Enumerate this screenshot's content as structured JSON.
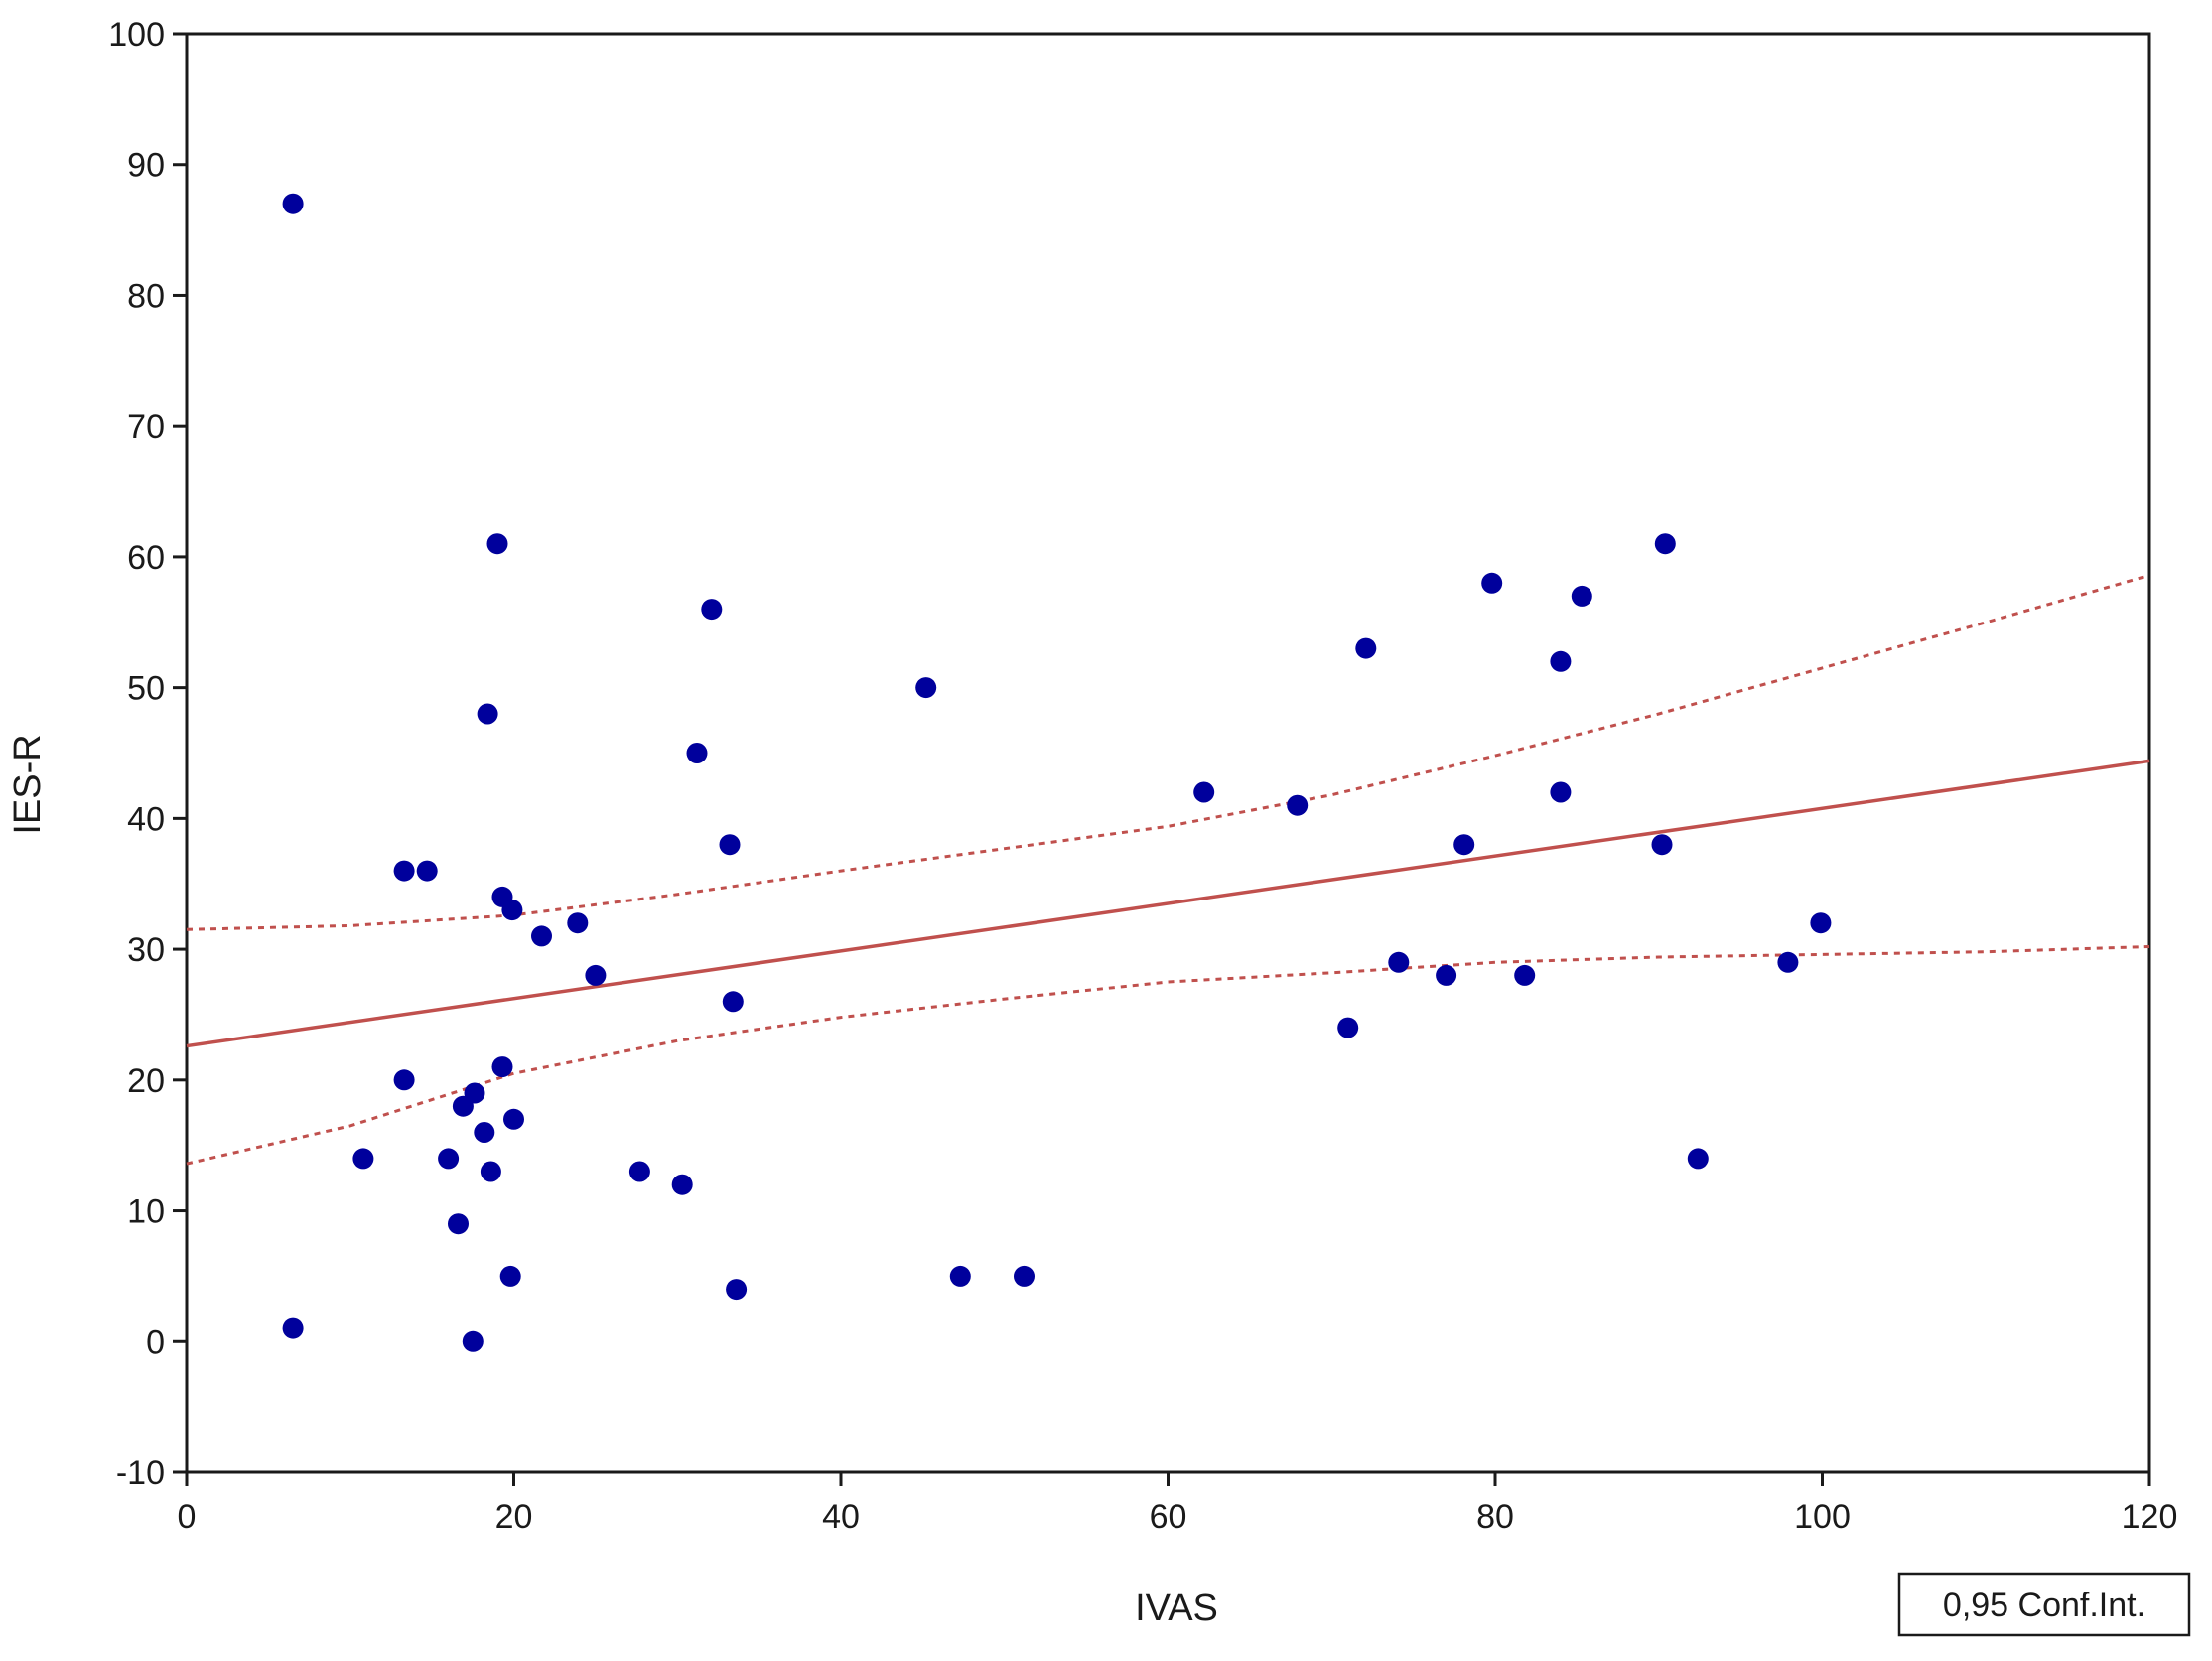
{
  "chart_data": {
    "type": "scatter",
    "xlabel": "IVAS",
    "ylabel": "IES-R",
    "xlim": [
      0,
      120
    ],
    "ylim": [
      -10,
      100
    ],
    "xticks": [
      "0",
      "20",
      "40",
      "60",
      "80",
      "100",
      "120"
    ],
    "yticks": [
      "-10",
      "0",
      "10",
      "20",
      "30",
      "40",
      "50",
      "60",
      "70",
      "80",
      "90",
      "100"
    ],
    "grid": false,
    "legend": {
      "label": "0,95 Conf.Int.",
      "position": "bottom-right"
    },
    "colors": {
      "points": "#00009c",
      "fit": "#c0504d",
      "ci": "#c0504d"
    },
    "points": [
      {
        "x": 6.5,
        "y": 87
      },
      {
        "x": 6.5,
        "y": 1
      },
      {
        "x": 10.8,
        "y": 14
      },
      {
        "x": 13.3,
        "y": 36
      },
      {
        "x": 14.7,
        "y": 36
      },
      {
        "x": 13.3,
        "y": 20
      },
      {
        "x": 16.0,
        "y": 14
      },
      {
        "x": 16.6,
        "y": 9
      },
      {
        "x": 16.9,
        "y": 18
      },
      {
        "x": 17.6,
        "y": 19
      },
      {
        "x": 17.5,
        "y": 0
      },
      {
        "x": 18.2,
        "y": 16
      },
      {
        "x": 18.4,
        "y": 48
      },
      {
        "x": 18.6,
        "y": 13
      },
      {
        "x": 19.0,
        "y": 61
      },
      {
        "x": 19.3,
        "y": 34
      },
      {
        "x": 19.3,
        "y": 21
      },
      {
        "x": 19.8,
        "y": 5
      },
      {
        "x": 19.9,
        "y": 33
      },
      {
        "x": 20.0,
        "y": 17
      },
      {
        "x": 21.7,
        "y": 31
      },
      {
        "x": 23.9,
        "y": 32
      },
      {
        "x": 25.0,
        "y": 28
      },
      {
        "x": 27.7,
        "y": 13
      },
      {
        "x": 30.3,
        "y": 12
      },
      {
        "x": 31.2,
        "y": 45
      },
      {
        "x": 32.1,
        "y": 56
      },
      {
        "x": 33.2,
        "y": 38
      },
      {
        "x": 33.4,
        "y": 26
      },
      {
        "x": 33.6,
        "y": 4
      },
      {
        "x": 45.2,
        "y": 50
      },
      {
        "x": 47.3,
        "y": 5
      },
      {
        "x": 51.2,
        "y": 5
      },
      {
        "x": 62.2,
        "y": 42
      },
      {
        "x": 67.9,
        "y": 41
      },
      {
        "x": 71.0,
        "y": 24
      },
      {
        "x": 72.1,
        "y": 53
      },
      {
        "x": 74.1,
        "y": 29
      },
      {
        "x": 77.0,
        "y": 28
      },
      {
        "x": 78.1,
        "y": 38
      },
      {
        "x": 79.8,
        "y": 58
      },
      {
        "x": 81.8,
        "y": 28
      },
      {
        "x": 84.0,
        "y": 52
      },
      {
        "x": 84.0,
        "y": 42
      },
      {
        "x": 85.3,
        "y": 57
      },
      {
        "x": 90.2,
        "y": 38
      },
      {
        "x": 90.4,
        "y": 61
      },
      {
        "x": 92.4,
        "y": 14
      },
      {
        "x": 97.9,
        "y": 29
      },
      {
        "x": 99.9,
        "y": 32
      }
    ],
    "fit_line": {
      "x": [
        0,
        120
      ],
      "y": [
        22.6,
        44.4
      ]
    },
    "ci_upper": {
      "x": [
        0,
        10,
        20,
        30,
        40,
        50,
        60,
        70,
        80,
        90,
        100,
        110,
        120
      ],
      "y": [
        31.5,
        31.8,
        32.6,
        34.2,
        36.0,
        37.7,
        39.4,
        41.8,
        44.8,
        48.0,
        51.5,
        55.0,
        58.6
      ]
    },
    "ci_lower": {
      "x": [
        0,
        10,
        20,
        30,
        40,
        50,
        60,
        70,
        80,
        90,
        100,
        110,
        120
      ],
      "y": [
        13.6,
        16.5,
        20.5,
        23.0,
        24.8,
        26.2,
        27.5,
        28.2,
        29.0,
        29.4,
        29.6,
        29.8,
        30.2
      ]
    }
  }
}
